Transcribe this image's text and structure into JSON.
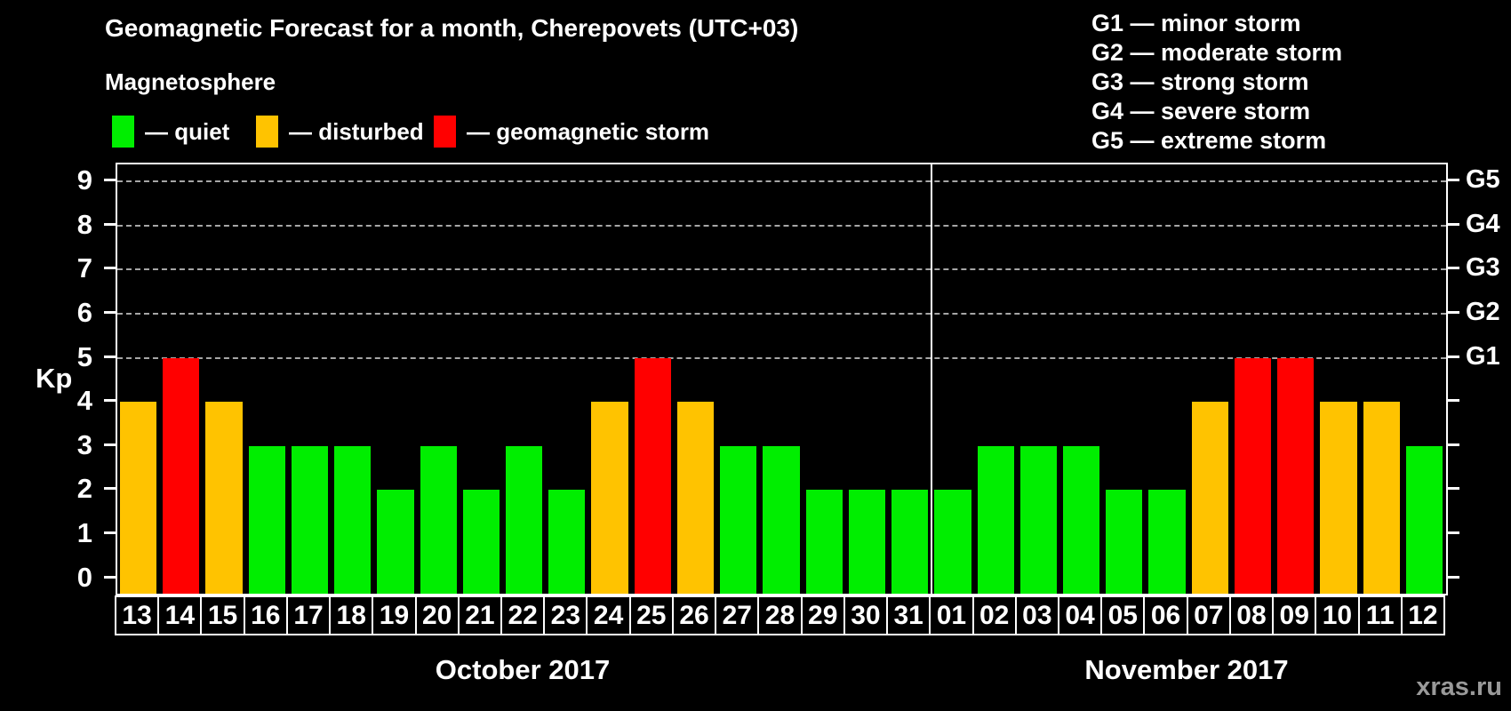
{
  "title": "Geomagnetic Forecast for a month, Cherepovets (UTC+03)",
  "subtitle": "Magnetosphere",
  "legend": {
    "items": [
      {
        "label": "— quiet",
        "status": "quiet",
        "color": "#00EE00"
      },
      {
        "label": "— disturbed",
        "status": "disturbed",
        "color": "#FFC300"
      },
      {
        "label": "— geomagnetic storm",
        "status": "storm",
        "color": "#FF0000"
      }
    ]
  },
  "storm_scale_legend": [
    "G1 — minor storm",
    "G2 — moderate storm",
    "G3 — strong storm",
    "G4 — severe storm",
    "G5 — extreme storm"
  ],
  "watermark": "xras.ru",
  "chart_data": {
    "type": "bar",
    "title": "Geomagnetic Forecast for a month, Cherepovets (UTC+03)",
    "ylabel": "Kp",
    "ylim": [
      0,
      9
    ],
    "yticks": [
      0,
      1,
      2,
      3,
      4,
      5,
      6,
      7,
      8,
      9
    ],
    "gridlines_at": [
      5,
      6,
      7,
      8,
      9
    ],
    "grid": "dashed horizontal at storm levels only",
    "legend_position": "top-left",
    "right_axis": [
      {
        "kp": 5,
        "label": "G1"
      },
      {
        "kp": 6,
        "label": "G2"
      },
      {
        "kp": 7,
        "label": "G3"
      },
      {
        "kp": 8,
        "label": "G4"
      },
      {
        "kp": 9,
        "label": "G5"
      }
    ],
    "months": [
      {
        "name": "October 2017",
        "days": 19
      },
      {
        "name": "November 2017",
        "days": 12
      }
    ],
    "separator_after_index": 18,
    "categories": [
      "13",
      "14",
      "15",
      "16",
      "17",
      "18",
      "19",
      "20",
      "21",
      "22",
      "23",
      "24",
      "25",
      "26",
      "27",
      "28",
      "29",
      "30",
      "31",
      "01",
      "02",
      "03",
      "04",
      "05",
      "06",
      "07",
      "08",
      "09",
      "10",
      "11",
      "12"
    ],
    "values": [
      4,
      5,
      4,
      3,
      3,
      3,
      2,
      3,
      2,
      3,
      2,
      4,
      5,
      4,
      3,
      3,
      2,
      2,
      2,
      2,
      3,
      3,
      3,
      2,
      2,
      4,
      5,
      5,
      4,
      4,
      3
    ],
    "statuses": [
      "disturbed",
      "storm",
      "disturbed",
      "quiet",
      "quiet",
      "quiet",
      "quiet",
      "quiet",
      "quiet",
      "quiet",
      "quiet",
      "disturbed",
      "storm",
      "disturbed",
      "quiet",
      "quiet",
      "quiet",
      "quiet",
      "quiet",
      "quiet",
      "quiet",
      "quiet",
      "quiet",
      "quiet",
      "quiet",
      "disturbed",
      "storm",
      "storm",
      "disturbed",
      "disturbed",
      "quiet"
    ],
    "status_colors": {
      "quiet": "#00EE00",
      "disturbed": "#FFC300",
      "storm": "#FF0000"
    }
  }
}
